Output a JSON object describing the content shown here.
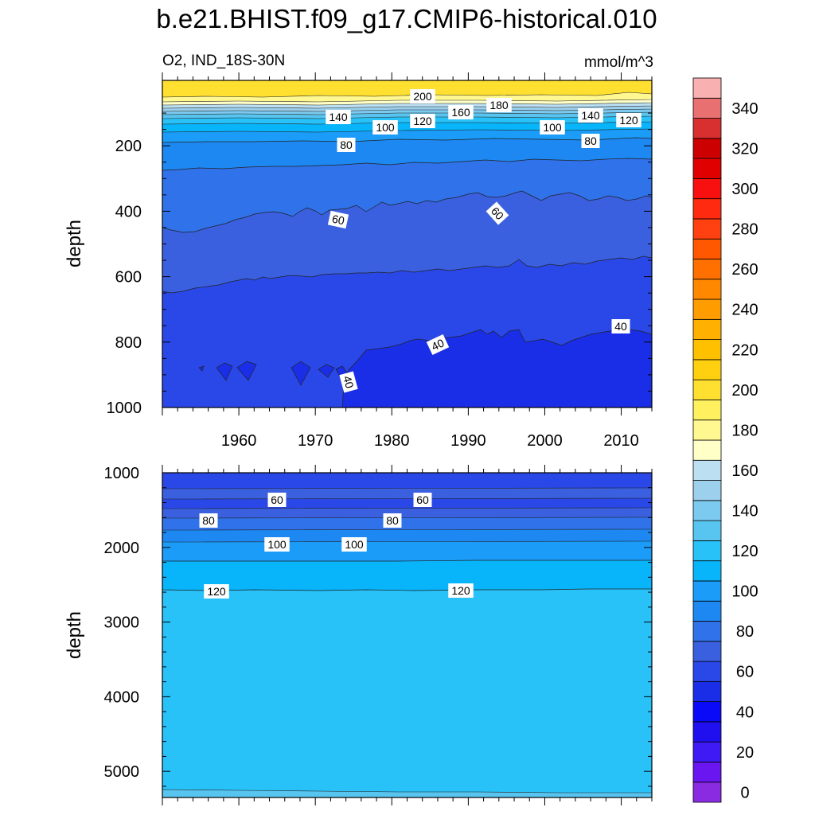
{
  "chart_data": {
    "type": "contour",
    "title": "b.e21.BHIST.f09_g17.CMIP6-historical.010",
    "variable_label": "O2, IND_18S-30N",
    "units_label": "mmol/m^3",
    "panels": [
      {
        "name": "upper",
        "ylabel": "depth",
        "ylim": [
          0,
          1000
        ],
        "y_ticks": [
          "200",
          "400",
          "600",
          "800",
          "1000"
        ],
        "x_ticks": [
          "1960",
          "1970",
          "1980",
          "1990",
          "2000",
          "2010"
        ],
        "xlim": [
          1950,
          2014
        ],
        "contour_labels": [
          "200",
          "140",
          "100",
          "120",
          "160",
          "180",
          "100",
          "140",
          "120",
          "80",
          "80",
          "60",
          "60",
          "40",
          "40",
          "40"
        ]
      },
      {
        "name": "lower",
        "ylabel": "depth",
        "ylim": [
          1000,
          5350
        ],
        "y_ticks": [
          "1000",
          "2000",
          "3000",
          "4000",
          "5000"
        ],
        "xlim": [
          1950,
          2014
        ],
        "contour_labels": [
          "60",
          "60",
          "80",
          "80",
          "100",
          "100",
          "120",
          "120"
        ]
      }
    ],
    "colorbar": {
      "levels": [
        0,
        10,
        20,
        30,
        40,
        50,
        60,
        70,
        80,
        90,
        100,
        110,
        120,
        130,
        140,
        150,
        160,
        170,
        180,
        190,
        200,
        210,
        220,
        230,
        240,
        250,
        260,
        270,
        280,
        290,
        300,
        310,
        320,
        330,
        340,
        350
      ],
      "tick_labels": [
        "0",
        "20",
        "40",
        "60",
        "80",
        "100",
        "120",
        "140",
        "160",
        "180",
        "200",
        "220",
        "240",
        "260",
        "280",
        "300",
        "320",
        "340"
      ],
      "colors": [
        "#8a2be2",
        "#6a16f0",
        "#3f1af5",
        "#2010f0",
        "#0a0af8",
        "#1a2ee8",
        "#2a48e8",
        "#3a60e0",
        "#2f72ea",
        "#1e88f2",
        "#1a9cf8",
        "#08b4fa",
        "#28c2f8",
        "#58c4f0",
        "#7ccaf0",
        "#9cd0ec",
        "#bcdff2",
        "#ffffc8",
        "#fff890",
        "#fff060",
        "#ffe030",
        "#ffd010",
        "#ffc000",
        "#ffb000",
        "#ff9c00",
        "#ff8800",
        "#ff7000",
        "#ff5800",
        "#ff4010",
        "#ff2a10",
        "#f81010",
        "#e00000",
        "#cc0000",
        "#d83030",
        "#e87070",
        "#f8b0b0"
      ]
    }
  }
}
